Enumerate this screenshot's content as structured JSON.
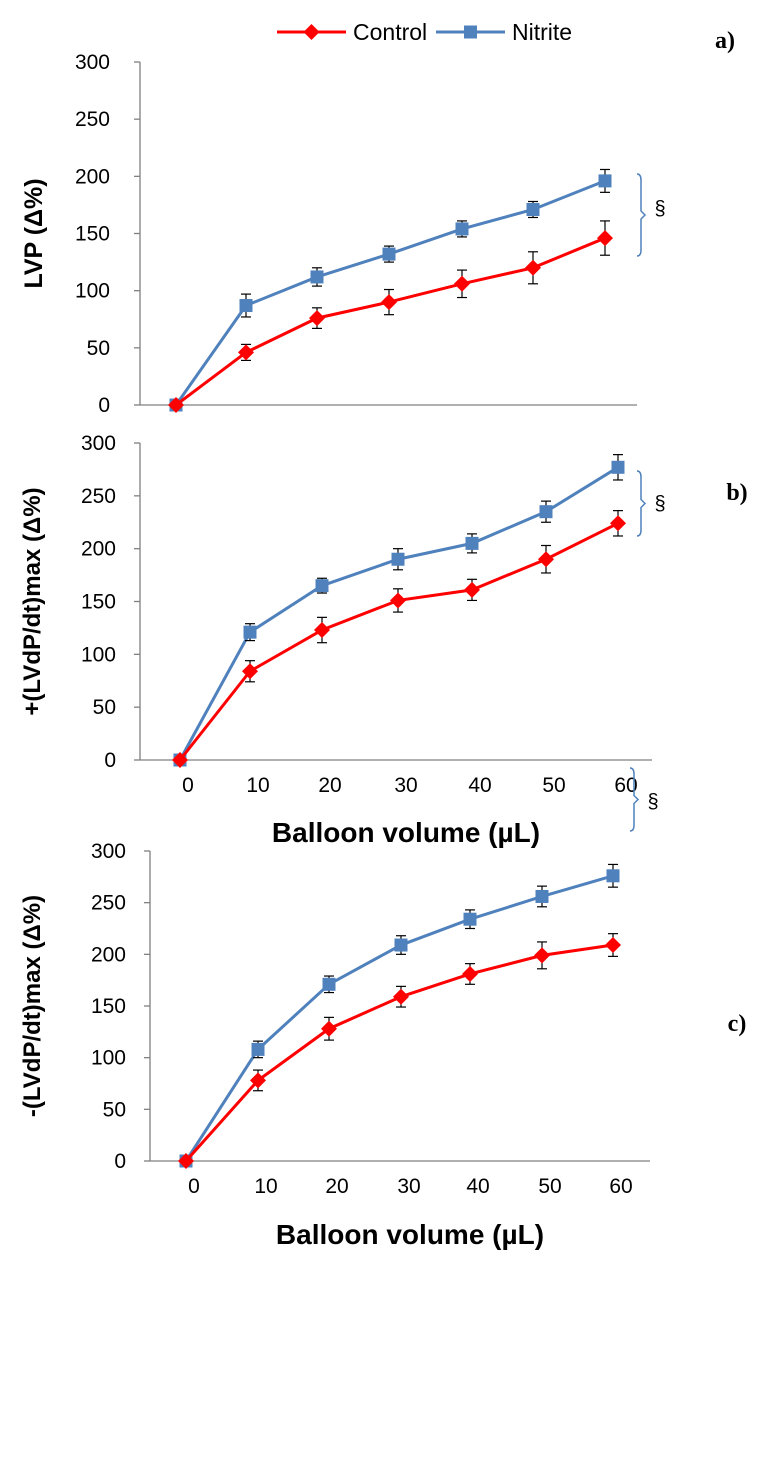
{
  "legend": {
    "items": [
      {
        "name": "Control",
        "color": "#ff0000",
        "marker": "diamond"
      },
      {
        "name": "Nitrite",
        "color": "#4f81bd",
        "marker": "square"
      }
    ],
    "placement": "top-center"
  },
  "chart_data": [
    {
      "type": "line",
      "panel_label": "a)",
      "ylabel": "LVP (Δ%)",
      "xlabel": "",
      "ylim": [
        0,
        300
      ],
      "yticks": [
        0,
        50,
        100,
        150,
        200,
        250,
        300
      ],
      "x": [
        0,
        10,
        20,
        30,
        40,
        50,
        60
      ],
      "xticks_visible": false,
      "grid": false,
      "series": [
        {
          "name": "Control",
          "values": [
            0,
            46,
            76,
            90,
            106,
            120,
            146
          ],
          "errors": [
            0,
            7,
            9,
            11,
            12,
            14,
            15
          ]
        },
        {
          "name": "Nitrite",
          "values": [
            0,
            87,
            112,
            132,
            154,
            171,
            196
          ],
          "errors": [
            0,
            10,
            8,
            7,
            7,
            7,
            10
          ]
        }
      ],
      "annotation": "§"
    },
    {
      "type": "line",
      "panel_label": "b)",
      "ylabel": "+(LVdP/dt)max (Δ%)",
      "xlabel": "Balloon volume (µL)",
      "ylim": [
        0,
        300
      ],
      "yticks": [
        0,
        50,
        100,
        150,
        200,
        250,
        300
      ],
      "x": [
        0,
        10,
        20,
        30,
        40,
        50,
        60
      ],
      "xtick_labels": [
        "0",
        "10",
        "20",
        "30",
        "40",
        "50",
        "60"
      ],
      "grid": false,
      "series": [
        {
          "name": "Control",
          "values": [
            0,
            84,
            123,
            151,
            161,
            190,
            224
          ],
          "errors": [
            0,
            10,
            12,
            11,
            10,
            13,
            12
          ]
        },
        {
          "name": "Nitrite",
          "values": [
            0,
            121,
            165,
            190,
            205,
            235,
            277
          ],
          "errors": [
            0,
            8,
            7,
            10,
            9,
            10,
            12
          ]
        }
      ],
      "annotation": "§"
    },
    {
      "type": "line",
      "panel_label": "c)",
      "ylabel": "-(LVdP/dt)max (Δ%)",
      "xlabel": "Balloon volume (µL)",
      "ylim": [
        0,
        300
      ],
      "yticks": [
        0,
        50,
        100,
        150,
        200,
        250,
        300
      ],
      "x": [
        0,
        10,
        20,
        30,
        40,
        50,
        60
      ],
      "xtick_labels": [
        "0",
        "10",
        "20",
        "30",
        "40",
        "50",
        "60"
      ],
      "grid": false,
      "series": [
        {
          "name": "Control",
          "values": [
            0,
            78,
            128,
            159,
            181,
            199,
            209
          ],
          "errors": [
            0,
            10,
            11,
            10,
            10,
            13,
            11
          ]
        },
        {
          "name": "Nitrite",
          "values": [
            0,
            108,
            171,
            209,
            234,
            256,
            276
          ],
          "errors": [
            0,
            8,
            8,
            9,
            9,
            10,
            11
          ]
        }
      ],
      "annotation": "§"
    }
  ]
}
